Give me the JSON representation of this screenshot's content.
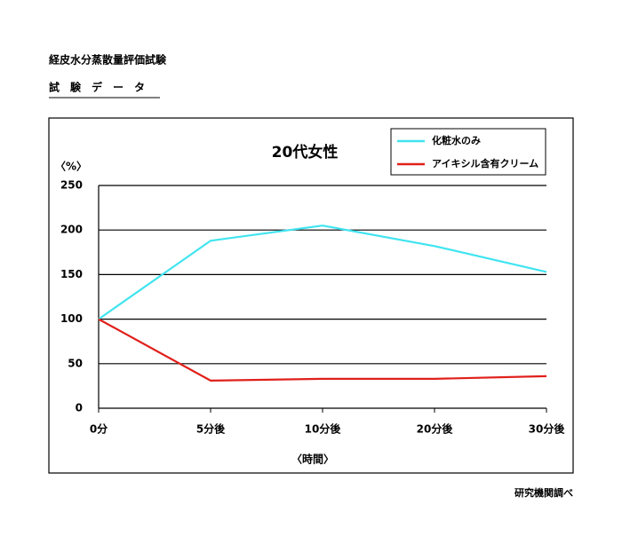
{
  "header": {
    "title": "経皮水分蒸散量評価試験",
    "subtitle": "試　験　デ　ー　タ"
  },
  "chart_data": {
    "type": "line",
    "title": "20代女性",
    "y_label": "〈%〉",
    "x_label": "〈時間〉",
    "categories": [
      "0分",
      "5分後",
      "10分後",
      "20分後",
      "30分後"
    ],
    "series": [
      {
        "name": "化粧水のみ",
        "color": "#40e4f0",
        "values": [
          100,
          188,
          205,
          182,
          153
        ]
      },
      {
        "name": "アイキシル含有クリーム",
        "color": "#e0201b",
        "values": [
          100,
          31,
          33,
          33,
          36
        ]
      }
    ],
    "ylim": [
      0,
      250
    ],
    "yticks": [
      0,
      50,
      100,
      150,
      200,
      250
    ],
    "grid": true
  },
  "footer": "研究機関調べ"
}
